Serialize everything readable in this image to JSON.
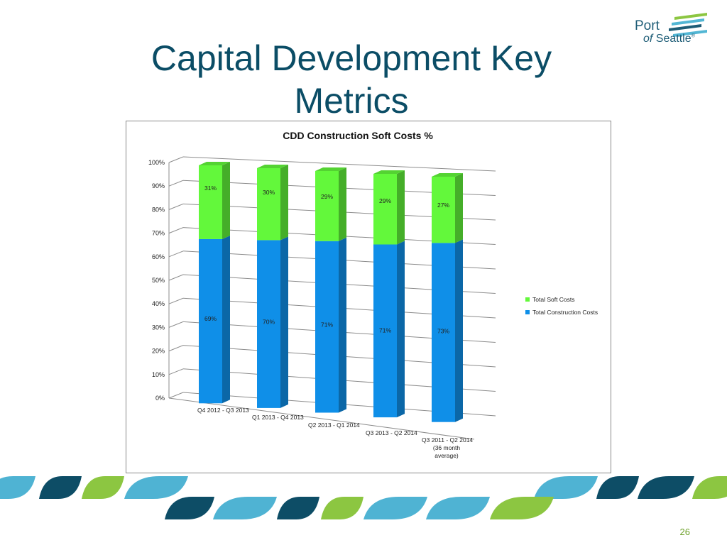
{
  "slide": {
    "title": "Capital Development Key Metrics",
    "page_number": "26"
  },
  "logo": {
    "line1": "Port",
    "line2_prefix": "of",
    "line2_name": "Seattle",
    "mark": "®",
    "colors": [
      "#1d5c76",
      "#52b6d4",
      "#8cc641"
    ]
  },
  "chart_data": {
    "type": "bar",
    "stacked": true,
    "title": "CDD Construction Soft Costs %",
    "categories": [
      "Q4 2012 - Q3 2013",
      "Q1 2013 - Q4 2013",
      "Q2 2013 - Q1 2014",
      "Q3 2013 - Q2 2014",
      "Q3 2011 - Q2 2014 (36 month average)"
    ],
    "series": [
      {
        "name": "Total Construction Costs",
        "values": [
          69,
          70,
          71,
          71,
          73
        ],
        "labels": [
          "69%",
          "70%",
          "71%",
          "71%",
          "73%"
        ],
        "color": "#0f8fe8"
      },
      {
        "name": "Total Soft Costs",
        "values": [
          31,
          30,
          29,
          29,
          27
        ],
        "labels": [
          "31%",
          "30%",
          "29%",
          "29%",
          "27%"
        ],
        "color": "#63f83b"
      }
    ],
    "y_ticks": [
      "0%",
      "10%",
      "20%",
      "30%",
      "40%",
      "50%",
      "60%",
      "70%",
      "80%",
      "90%",
      "100%"
    ],
    "ylim": [
      0,
      100
    ],
    "grid": true,
    "legend": [
      "Total Soft Costs",
      "Total Construction Costs"
    ],
    "legend_position": "right",
    "view": "3d"
  }
}
